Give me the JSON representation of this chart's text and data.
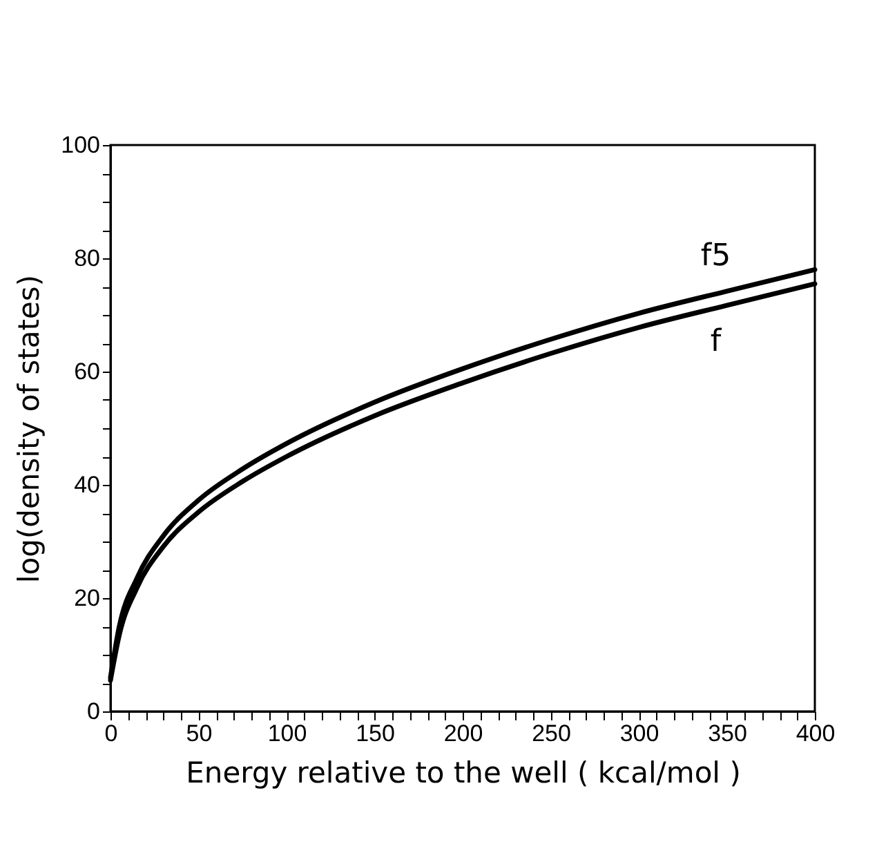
{
  "chart_data": {
    "type": "line",
    "xlabel": "Energy relative to the well ( kcal/mol )",
    "ylabel": "log(density of states)",
    "x": [
      0,
      5,
      15,
      30,
      50,
      75,
      100,
      150,
      200,
      250,
      300,
      350,
      400
    ],
    "series": [
      {
        "name": "f5",
        "color": "#000000",
        "values": [
          6,
          15,
          23.5,
          31,
          37.3,
          42.8,
          47.3,
          54.6,
          60.5,
          65.7,
          70.3,
          74.2,
          78
        ]
      },
      {
        "name": "f",
        "color": "#000000",
        "values": [
          5.5,
          13.5,
          21.8,
          29.1,
          35.2,
          40.6,
          45,
          52.2,
          58,
          63.2,
          67.8,
          71.7,
          75.5
        ]
      }
    ],
    "xlim": [
      0,
      400
    ],
    "ylim": [
      0,
      100
    ],
    "xticks": [
      0,
      {
        "value": 10,
        "label": null
      },
      {
        "value": 20,
        "label": null
      },
      {
        "value": 30,
        "label": null
      },
      {
        "value": 40,
        "label": null
      },
      50,
      {
        "value": 60,
        "label": null
      },
      {
        "value": 70,
        "label": null
      },
      {
        "value": 80,
        "label": null
      },
      {
        "value": 90,
        "label": null
      },
      100,
      {
        "value": 110,
        "label": null
      },
      {
        "value": 120,
        "label": null
      },
      {
        "value": 130,
        "label": null
      },
      {
        "value": 140,
        "label": null
      },
      150,
      {
        "value": 160,
        "label": null
      },
      {
        "value": 170,
        "label": null
      },
      {
        "value": 180,
        "label": null
      },
      {
        "value": 190,
        "label": null
      },
      200,
      {
        "value": 210,
        "label": null
      },
      {
        "value": 220,
        "label": null
      },
      {
        "value": 230,
        "label": null
      },
      {
        "value": 240,
        "label": null
      },
      250,
      {
        "value": 260,
        "label": null
      },
      {
        "value": 270,
        "label": null
      },
      {
        "value": 280,
        "label": null
      },
      {
        "value": 290,
        "label": null
      },
      300,
      {
        "value": 310,
        "label": null
      },
      {
        "value": 320,
        "label": null
      },
      {
        "value": 330,
        "label": null
      },
      {
        "value": 340,
        "label": null
      },
      350,
      {
        "value": 360,
        "label": null
      },
      {
        "value": 370,
        "label": null
      },
      {
        "value": 380,
        "label": null
      },
      {
        "value": 390,
        "label": null
      },
      400
    ],
    "yticks": [
      0,
      {
        "value": 5,
        "label": null
      },
      {
        "value": 10,
        "label": null
      },
      {
        "value": 15,
        "label": null
      },
      20,
      {
        "value": 25,
        "label": null
      },
      {
        "value": 30,
        "label": null
      },
      {
        "value": 35,
        "label": null
      },
      40,
      {
        "value": 45,
        "label": null
      },
      {
        "value": 50,
        "label": null
      },
      {
        "value": 55,
        "label": null
      },
      60,
      {
        "value": 65,
        "label": null
      },
      {
        "value": 70,
        "label": null
      },
      {
        "value": 75,
        "label": null
      },
      80,
      {
        "value": 85,
        "label": null
      },
      {
        "value": 90,
        "label": null
      },
      {
        "value": 95,
        "label": null
      },
      100
    ],
    "grid": false,
    "legend": false,
    "marker": "none",
    "line_style": "solid"
  }
}
